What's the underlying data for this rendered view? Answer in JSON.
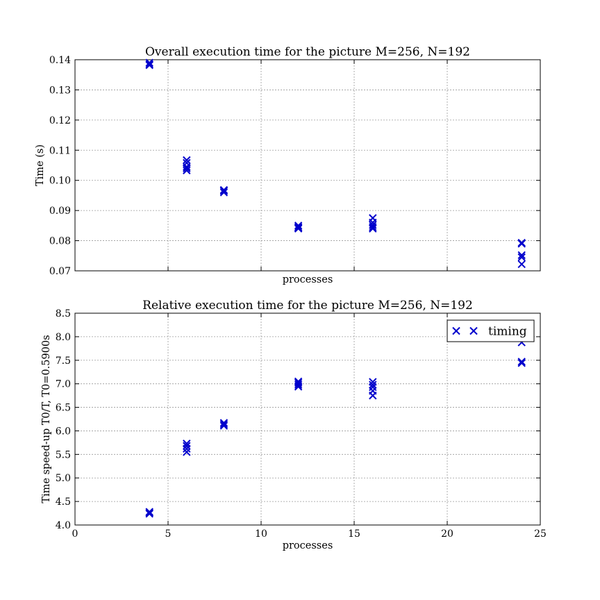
{
  "chart_data": [
    {
      "type": "scatter",
      "title": "Overall execution time for the picture M=256, N=192",
      "xlabel": "processes",
      "ylabel": "Time (s)",
      "xlim": [
        0,
        25
      ],
      "ylim": [
        0.07,
        0.14
      ],
      "xticks": [
        0,
        5,
        10,
        15,
        20,
        25
      ],
      "yticks": [
        0.07,
        0.08,
        0.09,
        0.1,
        0.11,
        0.12,
        0.13,
        0.14
      ],
      "ytick_labels": [
        "0.07",
        "0.08",
        "0.09",
        "0.10",
        "0.11",
        "0.12",
        "0.13",
        "0.14"
      ],
      "show_xtick_labels": false,
      "grid": true,
      "marker": "x",
      "color": "#0000cc",
      "points": [
        {
          "x": 4,
          "y": 0.139
        },
        {
          "x": 4,
          "y": 0.1385
        },
        {
          "x": 4,
          "y": 0.1382
        },
        {
          "x": 6,
          "y": 0.1067
        },
        {
          "x": 6,
          "y": 0.1058
        },
        {
          "x": 6,
          "y": 0.1045
        },
        {
          "x": 6,
          "y": 0.104
        },
        {
          "x": 6,
          "y": 0.1033
        },
        {
          "x": 8,
          "y": 0.0968
        },
        {
          "x": 8,
          "y": 0.0965
        },
        {
          "x": 8,
          "y": 0.096
        },
        {
          "x": 12,
          "y": 0.085
        },
        {
          "x": 12,
          "y": 0.0845
        },
        {
          "x": 12,
          "y": 0.0842
        },
        {
          "x": 12,
          "y": 0.084
        },
        {
          "x": 16,
          "y": 0.0875
        },
        {
          "x": 16,
          "y": 0.086
        },
        {
          "x": 16,
          "y": 0.0852
        },
        {
          "x": 16,
          "y": 0.0845
        },
        {
          "x": 16,
          "y": 0.084
        },
        {
          "x": 24,
          "y": 0.0793
        },
        {
          "x": 24,
          "y": 0.079
        },
        {
          "x": 24,
          "y": 0.0752
        },
        {
          "x": 24,
          "y": 0.0745
        },
        {
          "x": 24,
          "y": 0.0722
        }
      ]
    },
    {
      "type": "scatter",
      "title": "Relative execution time for the picture M=256, N=192",
      "xlabel": "processes",
      "ylabel": "Time speed-up T0/T, T0=0.5900s",
      "xlim": [
        0,
        25
      ],
      "ylim": [
        4.0,
        8.5
      ],
      "xticks": [
        0,
        5,
        10,
        15,
        20,
        25
      ],
      "xtick_labels": [
        "0",
        "5",
        "10",
        "15",
        "20",
        "25"
      ],
      "yticks": [
        4.0,
        4.5,
        5.0,
        5.5,
        6.0,
        6.5,
        7.0,
        7.5,
        8.0,
        8.5
      ],
      "ytick_labels": [
        "4.0",
        "4.5",
        "5.0",
        "5.5",
        "6.0",
        "6.5",
        "7.0",
        "7.5",
        "8.0",
        "8.5"
      ],
      "show_xtick_labels": true,
      "grid": true,
      "marker": "x",
      "color": "#0000cc",
      "legend": {
        "label": "timing",
        "position": "top-right"
      },
      "points": [
        {
          "x": 4,
          "y": 4.28
        },
        {
          "x": 4,
          "y": 4.26
        },
        {
          "x": 4,
          "y": 4.24
        },
        {
          "x": 6,
          "y": 5.73
        },
        {
          "x": 6,
          "y": 5.68
        },
        {
          "x": 6,
          "y": 5.62
        },
        {
          "x": 6,
          "y": 5.55
        },
        {
          "x": 8,
          "y": 6.17
        },
        {
          "x": 8,
          "y": 6.14
        },
        {
          "x": 8,
          "y": 6.11
        },
        {
          "x": 12,
          "y": 7.05
        },
        {
          "x": 12,
          "y": 7.02
        },
        {
          "x": 12,
          "y": 6.98
        },
        {
          "x": 12,
          "y": 6.94
        },
        {
          "x": 16,
          "y": 7.04
        },
        {
          "x": 16,
          "y": 6.98
        },
        {
          "x": 16,
          "y": 6.93
        },
        {
          "x": 16,
          "y": 6.85
        },
        {
          "x": 16,
          "y": 6.75
        },
        {
          "x": 24,
          "y": 7.88
        },
        {
          "x": 24,
          "y": 7.47
        },
        {
          "x": 24,
          "y": 7.44
        }
      ]
    }
  ]
}
